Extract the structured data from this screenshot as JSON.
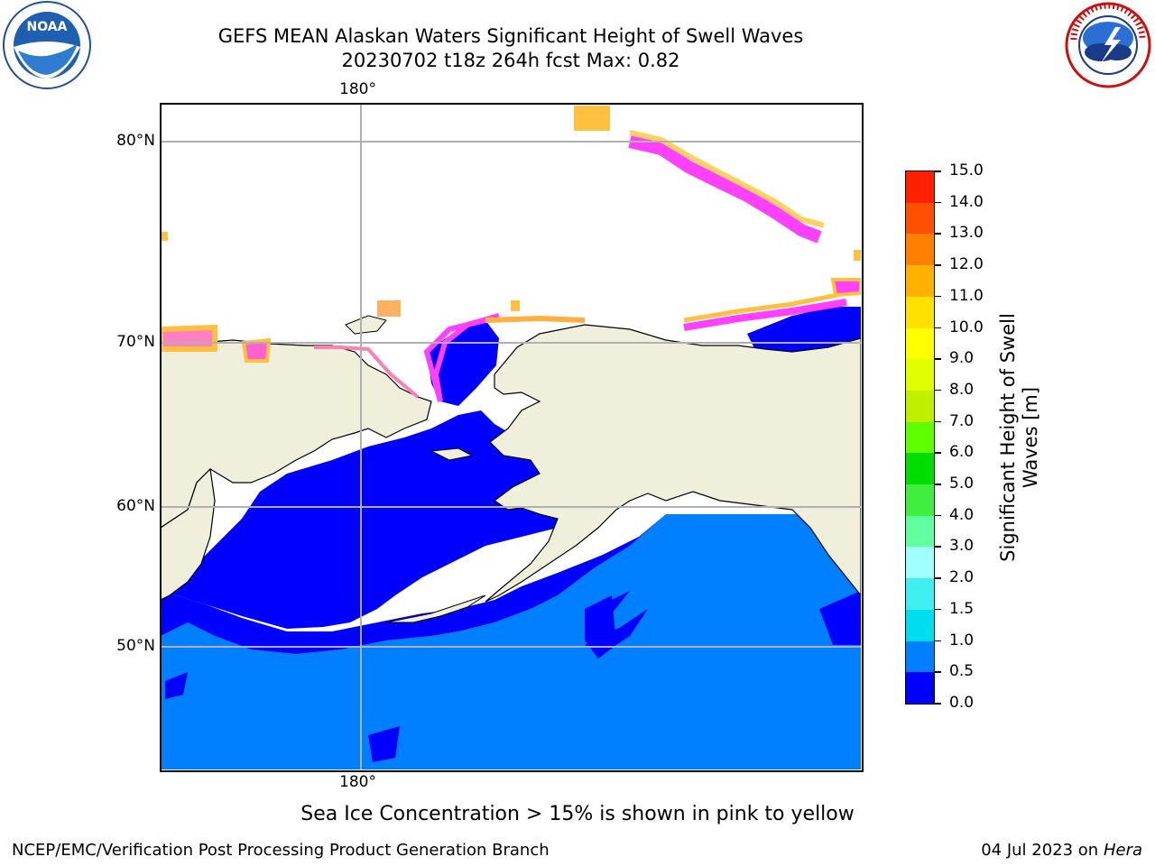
{
  "title": {
    "line1": "GEFS MEAN Alaskan Waters Significant Height of Swell Waves",
    "line2": "20230702 t18z 264h fcst   Max: 0.82"
  },
  "logos": {
    "left": {
      "icon": "noaa-logo",
      "text": "NOAA"
    },
    "right": {
      "icon": "nws-logo",
      "text": "NATIONAL WEATHER SERVICE"
    }
  },
  "map": {
    "projection": "polar-stereographic",
    "lat_labels": [
      "80°N",
      "70°N",
      "60°N",
      "50°N"
    ],
    "lon_label_top": "180°",
    "lon_label_bottom": "180°",
    "colors": {
      "land": "#efefdc",
      "coast": "#000000",
      "grid": "#b0b0b0",
      "swell_low": "#0000ff",
      "swell_mid": "#0080ff",
      "ice_pink": "#ff40ff",
      "ice_orange": "#ffa040",
      "ice_yellow": "#ffd040"
    }
  },
  "colorbar": {
    "title": "Significant Height of Swell Waves [m]",
    "ticks": [
      "0.0",
      "0.5",
      "1.0",
      "1.5",
      "2.0",
      "3.0",
      "4.0",
      "5.0",
      "6.0",
      "7.0",
      "8.0",
      "9.0",
      "10.0",
      "11.0",
      "12.0",
      "13.0",
      "14.0",
      "15.0"
    ],
    "colors": [
      "#0000ff",
      "#0080ff",
      "#00ddee",
      "#40f0f0",
      "#a0ffff",
      "#60ffa0",
      "#40ee40",
      "#00dd00",
      "#60ff00",
      "#c0f000",
      "#e0ff00",
      "#ffff00",
      "#ffe000",
      "#ffb000",
      "#ff8000",
      "#ff5000",
      "#ff2000",
      "#ff0000"
    ]
  },
  "notes": {
    "ice": "Sea Ice Concentration > 15% is shown in pink to yellow",
    "footer_left": "NCEP/EMC/Verification Post Processing Product Generation Branch",
    "footer_date": "04 Jul 2023 on ",
    "footer_machine": "Hera"
  }
}
